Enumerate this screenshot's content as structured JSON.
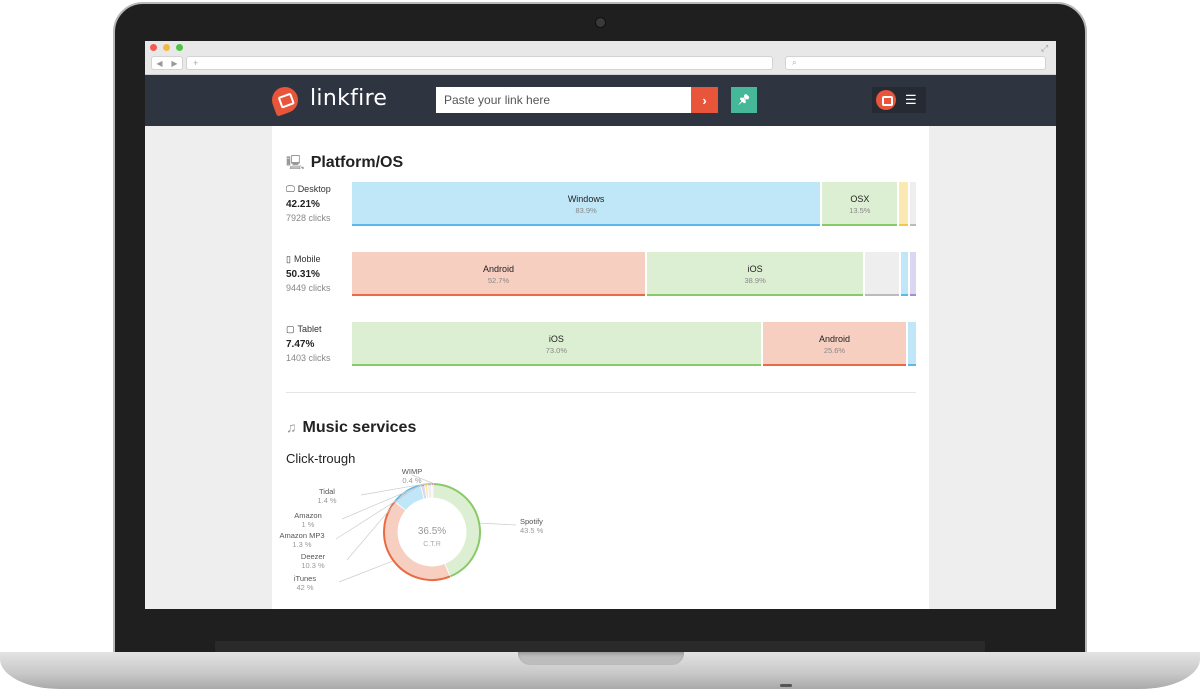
{
  "browser": {
    "url": "",
    "search": "",
    "new_tab_glyph": "+",
    "search_glyph": "⌕",
    "nav_back_glyph": "◀",
    "nav_fwd_glyph": "▶",
    "resize_glyph": "⤢"
  },
  "header": {
    "brand": "linkfire",
    "paste_placeholder": "Paste your link here",
    "go_glyph": "›",
    "pin_glyph": "📌",
    "menu_glyph": "☰"
  },
  "platform": {
    "title": "Platform/OS",
    "title_icon": "devices-icon",
    "rows": [
      {
        "device": "Desktop",
        "device_icon": "desktop-icon",
        "percent": "42.21%",
        "clicks": "7928 clicks",
        "segments": [
          {
            "name": "Windows",
            "value": 83.9,
            "label": "83.9%",
            "fill": "#bfe7f8",
            "line": "#5ab9e8"
          },
          {
            "name": "OSX",
            "value": 13.5,
            "label": "13.5%",
            "fill": "#ddefd2",
            "line": "#8ac968"
          },
          {
            "name": "",
            "value": 1.6,
            "label": "",
            "fill": "#fbe9b4",
            "line": "#f0c84a"
          },
          {
            "name": "",
            "value": 1.0,
            "label": "",
            "fill": "#eeeeee",
            "line": "#bbbbbb"
          }
        ]
      },
      {
        "device": "Mobile",
        "device_icon": "mobile-icon",
        "percent": "50.31%",
        "clicks": "9449 clicks",
        "segments": [
          {
            "name": "Android",
            "value": 52.7,
            "label": "52.7%",
            "fill": "#f6cfc1",
            "line": "#ea6a43"
          },
          {
            "name": "iOS",
            "value": 38.9,
            "label": "38.9%",
            "fill": "#ddefd2",
            "line": "#8ac968"
          },
          {
            "name": "",
            "value": 6.0,
            "label": "",
            "fill": "#eeeeee",
            "line": "#bbbbbb"
          },
          {
            "name": "",
            "value": 1.4,
            "label": "",
            "fill": "#bfe7f8",
            "line": "#5ab9e8"
          },
          {
            "name": "",
            "value": 1.0,
            "label": "",
            "fill": "#dcd6f2",
            "line": "#9e8fd6"
          }
        ]
      },
      {
        "device": "Tablet",
        "device_icon": "tablet-icon",
        "percent": "7.47%",
        "clicks": "1403 clicks",
        "segments": [
          {
            "name": "iOS",
            "value": 73.0,
            "label": "73.0%",
            "fill": "#ddefd2",
            "line": "#8ac968"
          },
          {
            "name": "Android",
            "value": 25.6,
            "label": "25.6%",
            "fill": "#f6cfc1",
            "line": "#ea6a43"
          },
          {
            "name": "",
            "value": 1.4,
            "label": "",
            "fill": "#bfe7f8",
            "line": "#5ab9e8"
          }
        ]
      }
    ]
  },
  "music": {
    "title": "Music services",
    "title_icon": "music-note-icon",
    "subtitle": "Click-trough",
    "center_value": "36.5%",
    "center_label": "C.T.R",
    "slices": [
      {
        "name": "Spotify",
        "label": "43.5 %",
        "value": 43.5,
        "color": "#ddefd2",
        "line": "#8ac968"
      },
      {
        "name": "iTunes",
        "label": "42 %",
        "value": 42,
        "color": "#f6cfc1",
        "line": "#ea6a43"
      },
      {
        "name": "Deezer",
        "label": "10.3 %",
        "value": 10.3,
        "color": "#bfe7f8",
        "line": "#5ab9e8"
      },
      {
        "name": "Amazon MP3",
        "label": "1.3 %",
        "value": 1.3,
        "color": "#dcd6f2",
        "line": "#9e8fd6"
      },
      {
        "name": "Amazon",
        "label": "1 %",
        "value": 1,
        "color": "#fbe9b4",
        "line": "#f0c84a"
      },
      {
        "name": "Tidal",
        "label": "1.4 %",
        "value": 1.4,
        "color": "#eeeeee",
        "line": "#bbbbbb"
      },
      {
        "name": "WIMP",
        "label": "0.4 %",
        "value": 0.4,
        "color": "#fbd7e6",
        "line": "#e98bb4"
      }
    ]
  }
}
